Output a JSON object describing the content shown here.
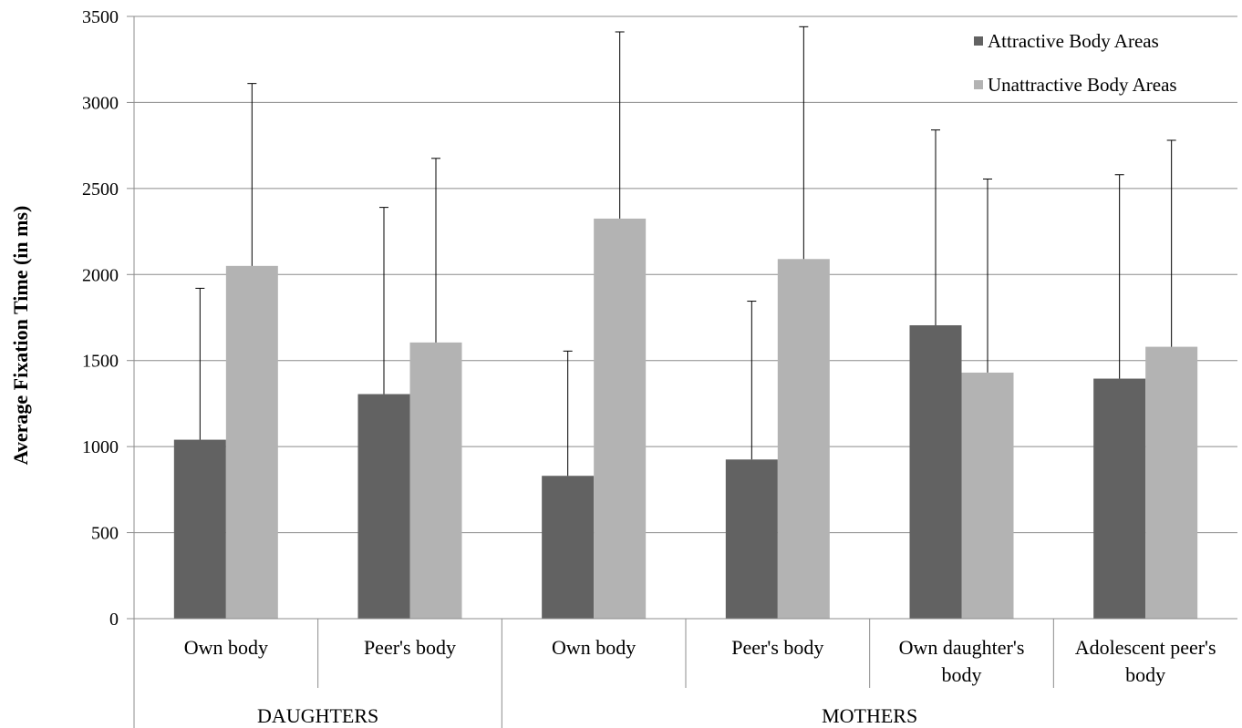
{
  "chart_data": {
    "type": "bar",
    "title": "",
    "xlabel": "",
    "ylabel": "Average Fixation Time (in ms)",
    "ylim": [
      0,
      3500
    ],
    "yticks": [
      0,
      500,
      1000,
      1500,
      2000,
      2500,
      3000,
      3500
    ],
    "grid": true,
    "legend_position": "top-right",
    "categories": [
      [
        "Own body"
      ],
      [
        "Peer's body"
      ],
      [
        "Own body"
      ],
      [
        "Peer's body"
      ],
      [
        "Own daughter's",
        "body"
      ],
      [
        "Adolescent peer's",
        "body"
      ]
    ],
    "groups": [
      {
        "label": "DAUGHTERS",
        "span": 2
      },
      {
        "label": "MOTHERS",
        "span": 4
      }
    ],
    "series": [
      {
        "name": "Attractive Body Areas",
        "color": "#626262",
        "values": [
          1040,
          1305,
          830,
          925,
          1705,
          1395
        ],
        "error_upper": [
          1920,
          2390,
          1555,
          1845,
          2840,
          2580
        ]
      },
      {
        "name": "Unattractive Body Areas",
        "color": "#b3b3b3",
        "values": [
          2050,
          1605,
          2325,
          2090,
          1430,
          1580
        ],
        "error_upper": [
          3110,
          2675,
          3410,
          3440,
          2555,
          2780
        ]
      }
    ]
  }
}
